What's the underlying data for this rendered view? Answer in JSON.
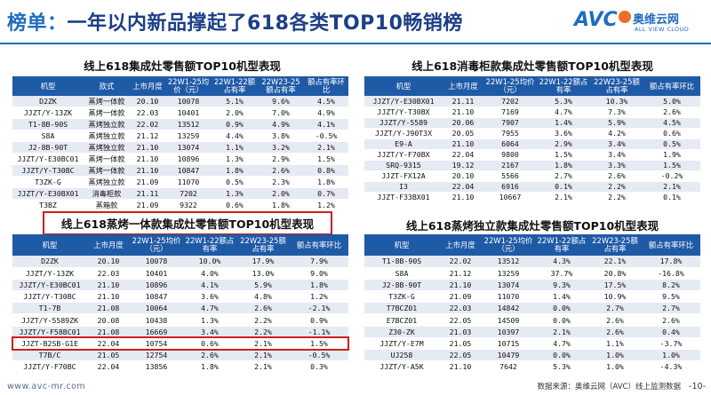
{
  "header": {
    "prefix": "榜单：",
    "title": "一年以内新品撑起了618各类TOP10畅销榜",
    "logo_brand": "AVC",
    "logo_cn": "奥维云网",
    "logo_en": "ALL VIEW CLOUD"
  },
  "colors": {
    "accent": "#1f6cc0",
    "table_header": "#1f5aa6",
    "highlight": "#d0201d",
    "row_alt": "#e5eaf3"
  },
  "t1": {
    "title": "线上618集成灶零售额TOP10机型表现",
    "headers": [
      "机型",
      "款式",
      "上市月度",
      "22W1-25均价（元）",
      "22W1-22额占有率",
      "22W23-25额占有率",
      "额占有率环比"
    ],
    "rows": [
      [
        "D2ZK",
        "蒸烤一体款",
        "20.10",
        "10078",
        "5.1%",
        "9.6%",
        "4.5%"
      ],
      [
        "JJZT/Y-13ZK",
        "蒸烤一体款",
        "22.03",
        "10401",
        "2.0%",
        "7.0%",
        "4.9%"
      ],
      [
        "T1-8B-90S",
        "蒸烤独立款",
        "22.02",
        "13512",
        "0.9%",
        "4.9%",
        "4.1%"
      ],
      [
        "S8A",
        "蒸烤独立款",
        "21.12",
        "13259",
        "4.4%",
        "3.8%",
        "-0.5%"
      ],
      [
        "J2-8B-90T",
        "蒸烤独立款",
        "21.10",
        "13074",
        "1.1%",
        "3.2%",
        "2.1%"
      ],
      [
        "JJZT/Y-E30BC01",
        "蒸烤一体款",
        "21.10",
        "10896",
        "1.3%",
        "2.9%",
        "1.5%"
      ],
      [
        "JJZT/Y-T30BC",
        "蒸烤一体款",
        "21.10",
        "10847",
        "1.8%",
        "2.6%",
        "0.8%"
      ],
      [
        "T3ZK-G",
        "蒸烤独立款",
        "21.09",
        "11070",
        "0.5%",
        "2.3%",
        "1.8%"
      ],
      [
        "JJZT/Y-E30BX01",
        "消毒柜款",
        "21.11",
        "7202",
        "1.3%",
        "2.0%",
        "0.7%"
      ],
      [
        "T3BZ",
        "蒸箱款",
        "21.09",
        "9322",
        "0.6%",
        "1.8%",
        "1.2%"
      ]
    ]
  },
  "t2": {
    "title": "线上618消毒柜款集成灶零售额TOP10机型表现",
    "headers": [
      "机型",
      "上市月度",
      "22W1-25均价（元）",
      "22W1-22额占有率",
      "22W23-25额占有率",
      "额占有率环比"
    ],
    "rows": [
      [
        "JJZT/Y-E30BX01",
        "21.11",
        "7202",
        "5.3%",
        "10.3%",
        "5.0%"
      ],
      [
        "JJZT/Y-T30BX",
        "21.10",
        "7169",
        "4.7%",
        "7.3%",
        "2.6%"
      ],
      [
        "JJZT/Y-5589",
        "20.06",
        "7907",
        "1.4%",
        "5.9%",
        "4.5%"
      ],
      [
        "JJZT/Y-J90T3X",
        "20.05",
        "7955",
        "3.6%",
        "4.2%",
        "0.6%"
      ],
      [
        "E9-A",
        "21.10",
        "6064",
        "2.9%",
        "3.4%",
        "0.5%"
      ],
      [
        "JJZT/Y-F70BX",
        "22.04",
        "9800",
        "1.5%",
        "3.4%",
        "1.9%"
      ],
      [
        "SRQ-9315",
        "19.12",
        "2167",
        "1.8%",
        "3.3%",
        "1.5%"
      ],
      [
        "JJZT-FX12A",
        "20.10",
        "5566",
        "2.7%",
        "2.6%",
        "-0.2%"
      ],
      [
        "I3",
        "22.04",
        "6916",
        "0.1%",
        "2.2%",
        "2.1%"
      ],
      [
        "JJZT-F33BX01",
        "21.10",
        "10667",
        "2.1%",
        "2.2%",
        "0.1%"
      ]
    ]
  },
  "t3": {
    "title": "线上618蒸烤一体款集成灶零售额TOP10机型表现",
    "headers": [
      "机型",
      "上市月度",
      "22W1-25均价（元）",
      "22W1-22额占有率",
      "22W23-25额占有率",
      "额占有率环比"
    ],
    "rows": [
      [
        "D2ZK",
        "20.10",
        "10078",
        "10.0%",
        "17.9%",
        "7.9%"
      ],
      [
        "JJZT/Y-13ZK",
        "22.03",
        "10401",
        "4.0%",
        "13.0%",
        "9.0%"
      ],
      [
        "JJZT/Y-E30BC01",
        "21.10",
        "10896",
        "4.1%",
        "5.9%",
        "1.8%"
      ],
      [
        "JJZT/Y-T30BC",
        "21.10",
        "10847",
        "3.6%",
        "4.8%",
        "1.2%"
      ],
      [
        "T1-7B",
        "21.08",
        "10064",
        "4.7%",
        "2.6%",
        "-2.1%"
      ],
      [
        "JJZT/Y-5589ZK",
        "20.08",
        "10438",
        "1.3%",
        "2.2%",
        "0.9%"
      ],
      [
        "JJZT/Y-F58BC01",
        "21.08",
        "16669",
        "3.4%",
        "2.2%",
        "-1.1%"
      ],
      [
        "JJZT-B2SB-G1E",
        "22.04",
        "10754",
        "0.6%",
        "2.1%",
        "1.5%"
      ],
      [
        "T7B/C",
        "21.05",
        "12754",
        "2.6%",
        "2.1%",
        "-0.5%"
      ],
      [
        "JJZT/Y-F70BC",
        "22.04",
        "13856",
        "1.8%",
        "2.1%",
        "0.3%"
      ]
    ]
  },
  "t4": {
    "title": "线上618蒸烤独立款集成灶零售额TOP10机型表现",
    "headers": [
      "机型",
      "上市月度",
      "22W1-25均价（元）",
      "22W1-22额占有率",
      "22W23-25额占有率",
      "额占有率环比"
    ],
    "rows": [
      [
        "T1-8B-90S",
        "22.02",
        "13512",
        "4.3%",
        "22.1%",
        "17.8%"
      ],
      [
        "S8A",
        "21.12",
        "13259",
        "37.7%",
        "20.8%",
        "-16.8%"
      ],
      [
        "J2-8B-90T",
        "21.10",
        "13074",
        "9.3%",
        "17.5%",
        "8.2%"
      ],
      [
        "T3ZK-G",
        "21.09",
        "11070",
        "1.4%",
        "10.9%",
        "9.5%"
      ],
      [
        "T7BCZ01",
        "22.03",
        "14842",
        "0.0%",
        "2.7%",
        "2.7%"
      ],
      [
        "E7BCZ01",
        "22.05",
        "14509",
        "0.0%",
        "2.6%",
        "2.6%"
      ],
      [
        "Z30-ZK",
        "21.03",
        "10397",
        "2.1%",
        "2.6%",
        "0.4%"
      ],
      [
        "JJZT/Y-E7M",
        "21.05",
        "10715",
        "4.7%",
        "1.1%",
        "-3.7%"
      ],
      [
        "UJ258",
        "22.05",
        "10479",
        "0.0%",
        "1.0%",
        "1.0%"
      ],
      [
        "JJZT/Y-A5K",
        "21.10",
        "7642",
        "5.3%",
        "1.0%",
        "-4.3%"
      ]
    ]
  },
  "footer": {
    "website": "www.avc-mr.com",
    "source": "数据来源：奥维云网（AVC）线上监测数据",
    "page": "-10-"
  }
}
